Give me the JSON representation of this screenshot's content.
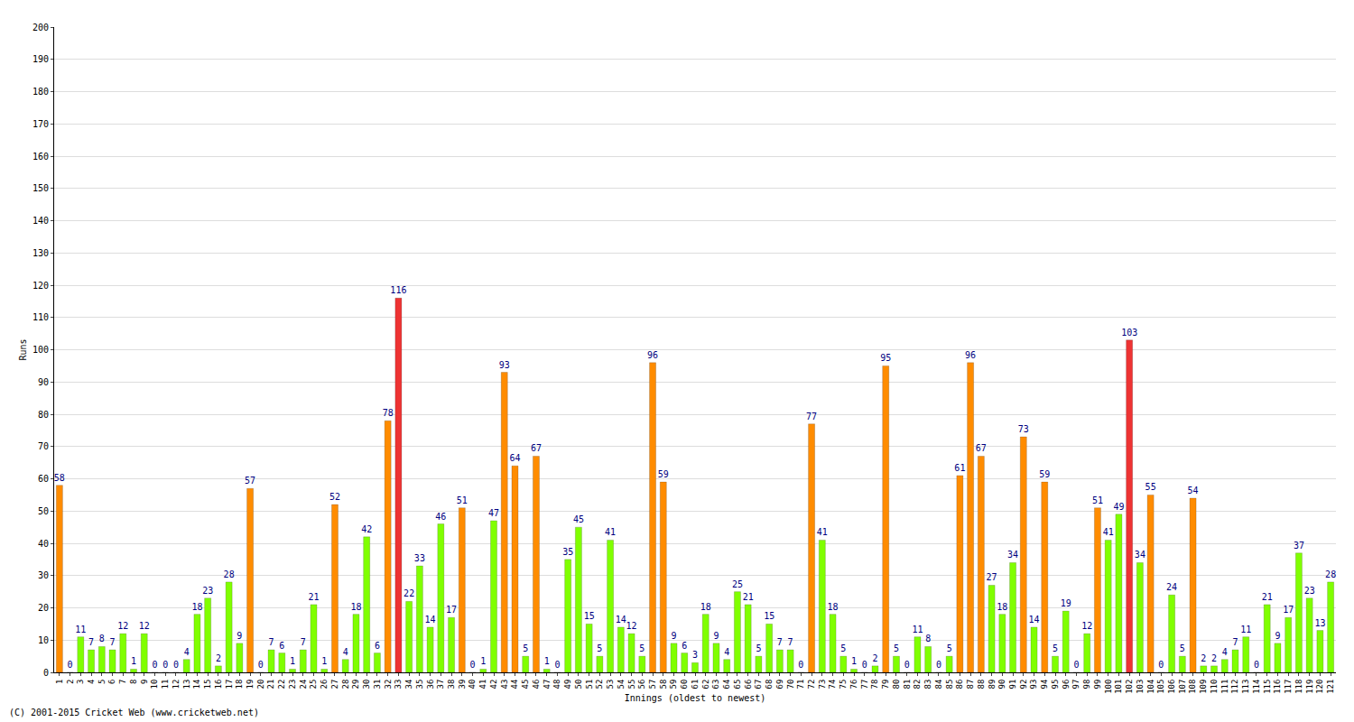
{
  "chart_data": {
    "type": "bar",
    "x_label": "Innings (oldest to newest)",
    "y_label": "Runs",
    "annotations": [
      "(C) 2001-2015 Cricket Web (www.cricketweb.net)"
    ],
    "categories": [
      "1",
      "2",
      "3",
      "4",
      "5",
      "6",
      "7",
      "8",
      "9",
      "10",
      "11",
      "12",
      "13",
      "14",
      "15",
      "16",
      "17",
      "18",
      "19",
      "20",
      "21",
      "22",
      "23",
      "24",
      "25",
      "26",
      "27",
      "28",
      "29",
      "30",
      "31",
      "32",
      "33",
      "34",
      "35",
      "36",
      "37",
      "38",
      "39",
      "40",
      "41",
      "42",
      "43",
      "44",
      "45",
      "46",
      "47",
      "48",
      "49",
      "50",
      "51",
      "52",
      "53",
      "54",
      "55",
      "56",
      "57",
      "58",
      "59",
      "60",
      "61",
      "62",
      "63",
      "64",
      "65",
      "66",
      "67",
      "68",
      "69",
      "70",
      "71",
      "72",
      "73",
      "74",
      "75",
      "76",
      "77",
      "78",
      "79",
      "80",
      "81",
      "82",
      "83",
      "84",
      "85",
      "86",
      "87",
      "88",
      "89",
      "90",
      "91",
      "92",
      "93",
      "94",
      "95",
      "96",
      "97",
      "98",
      "99",
      "100",
      "101",
      "102",
      "103",
      "104",
      "105",
      "106",
      "107",
      "108",
      "109",
      "110",
      "111",
      "112",
      "113",
      "114",
      "115",
      "116",
      "117",
      "118",
      "119",
      "120",
      "121"
    ],
    "values": [
      58,
      0,
      11,
      7,
      8,
      7,
      12,
      1,
      12,
      0,
      0,
      0,
      4,
      18,
      23,
      2,
      28,
      9,
      57,
      0,
      7,
      6,
      1,
      7,
      21,
      1,
      52,
      4,
      18,
      42,
      6,
      78,
      116,
      22,
      33,
      14,
      46,
      17,
      51,
      0,
      1,
      47,
      93,
      64,
      5,
      67,
      1,
      0,
      35,
      45,
      15,
      5,
      41,
      14,
      12,
      5,
      96,
      59,
      9,
      6,
      3,
      18,
      9,
      4,
      25,
      21,
      5,
      15,
      7,
      7,
      0,
      77,
      41,
      18,
      5,
      1,
      0,
      2,
      95,
      5,
      0,
      11,
      8,
      0,
      5,
      61,
      96,
      67,
      27,
      18,
      34,
      73,
      14,
      59,
      5,
      19,
      0,
      12,
      51,
      41,
      49,
      103,
      34,
      55,
      0,
      24,
      5,
      54,
      2,
      2,
      4,
      7,
      11,
      0,
      21,
      9,
      17,
      37,
      23,
      13,
      28
    ],
    "colors": [
      "#ff8c00",
      "#80ff00",
      "#80ff00",
      "#80ff00",
      "#80ff00",
      "#80ff00",
      "#80ff00",
      "#80ff00",
      "#80ff00",
      "#80ff00",
      "#80ff00",
      "#80ff00",
      "#80ff00",
      "#80ff00",
      "#80ff00",
      "#80ff00",
      "#80ff00",
      "#80ff00",
      "#ff8c00",
      "#80ff00",
      "#80ff00",
      "#80ff00",
      "#80ff00",
      "#80ff00",
      "#80ff00",
      "#80ff00",
      "#ff8c00",
      "#80ff00",
      "#80ff00",
      "#80ff00",
      "#80ff00",
      "#ff8c00",
      "#ee3333",
      "#80ff00",
      "#80ff00",
      "#80ff00",
      "#80ff00",
      "#80ff00",
      "#ff8c00",
      "#80ff00",
      "#80ff00",
      "#80ff00",
      "#ff8c00",
      "#ff8c00",
      "#80ff00",
      "#ff8c00",
      "#80ff00",
      "#80ff00",
      "#80ff00",
      "#80ff00",
      "#80ff00",
      "#80ff00",
      "#80ff00",
      "#80ff00",
      "#80ff00",
      "#80ff00",
      "#ff8c00",
      "#ff8c00",
      "#80ff00",
      "#80ff00",
      "#80ff00",
      "#80ff00",
      "#80ff00",
      "#80ff00",
      "#80ff00",
      "#80ff00",
      "#80ff00",
      "#80ff00",
      "#80ff00",
      "#80ff00",
      "#80ff00",
      "#ff8c00",
      "#80ff00",
      "#80ff00",
      "#80ff00",
      "#80ff00",
      "#80ff00",
      "#80ff00",
      "#ff8c00",
      "#80ff00",
      "#80ff00",
      "#80ff00",
      "#80ff00",
      "#80ff00",
      "#80ff00",
      "#ff8c00",
      "#ff8c00",
      "#ff8c00",
      "#80ff00",
      "#80ff00",
      "#80ff00",
      "#ff8c00",
      "#80ff00",
      "#ff8c00",
      "#80ff00",
      "#80ff00",
      "#80ff00",
      "#80ff00",
      "#ff8c00",
      "#80ff00",
      "#80ff00",
      "#ee3333",
      "#80ff00",
      "#ff8c00",
      "#80ff00",
      "#80ff00",
      "#80ff00",
      "#ff8c00",
      "#80ff00",
      "#80ff00",
      "#80ff00",
      "#80ff00",
      "#80ff00",
      "#80ff00",
      "#80ff00",
      "#80ff00",
      "#80ff00",
      "#80ff00",
      "#80ff00",
      "#80ff00",
      "#80ff00"
    ],
    "ylim": [
      0,
      200
    ],
    "yticks": [
      0,
      10,
      20,
      30,
      40,
      50,
      60,
      70,
      80,
      90,
      100,
      110,
      120,
      130,
      140,
      150,
      160,
      170,
      180,
      190,
      200
    ],
    "grid": true,
    "data_labels": true
  }
}
